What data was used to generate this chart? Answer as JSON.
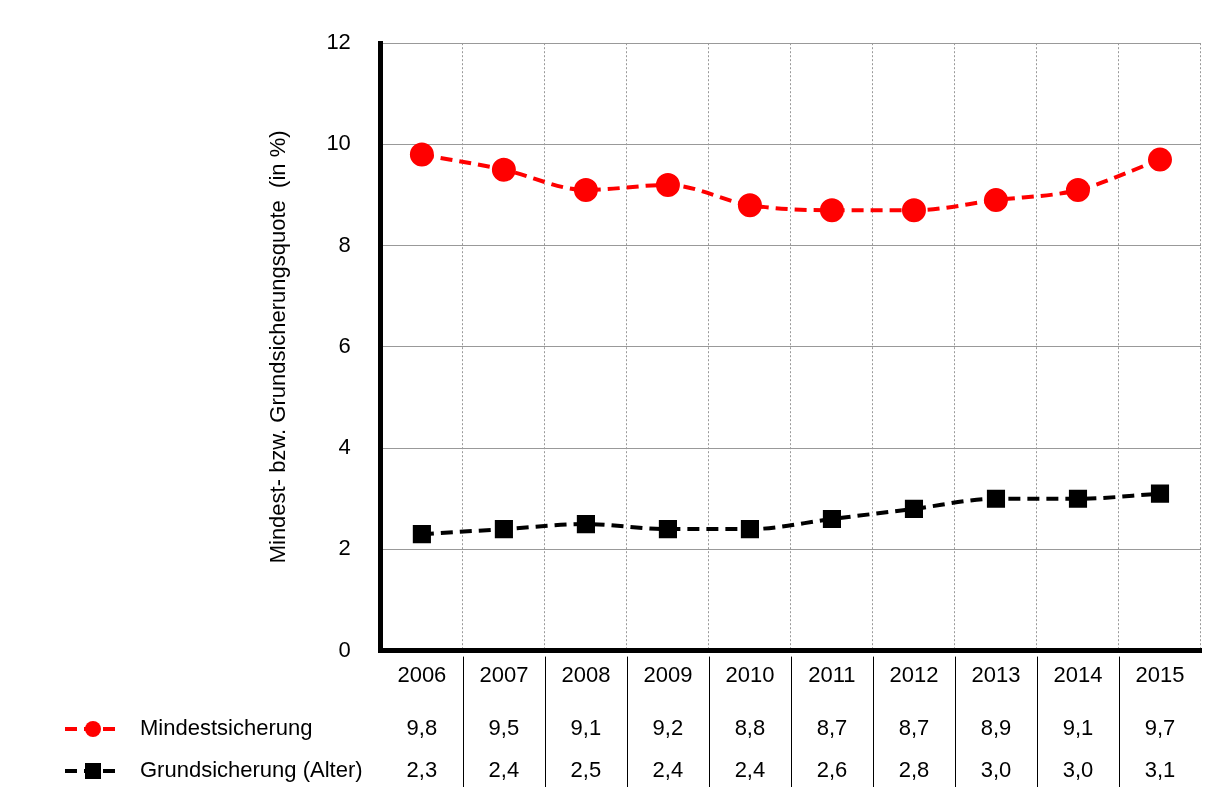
{
  "chart_data": {
    "type": "line",
    "ylabel": "Mindest- bzw. Grundsicherungsquote  (in %)",
    "categories": [
      "2006",
      "2007",
      "2008",
      "2009",
      "2010",
      "2011",
      "2012",
      "2013",
      "2014",
      "2015"
    ],
    "series": [
      {
        "name": "Mindestsicherung",
        "color": "#ff0000",
        "marker": "circle",
        "values": [
          9.8,
          9.5,
          9.1,
          9.2,
          8.8,
          8.7,
          8.7,
          8.9,
          9.1,
          9.7
        ],
        "value_labels": [
          "9,8",
          "9,5",
          "9,1",
          "9,2",
          "8,8",
          "8,7",
          "8,7",
          "8,9",
          "9,1",
          "9,7"
        ]
      },
      {
        "name": "Grundsicherung (Alter)",
        "color": "#000000",
        "marker": "square",
        "values": [
          2.3,
          2.4,
          2.5,
          2.4,
          2.4,
          2.6,
          2.8,
          3.0,
          3.0,
          3.1
        ],
        "value_labels": [
          "2,3",
          "2,4",
          "2,5",
          "2,4",
          "2,4",
          "2,6",
          "2,8",
          "3,0",
          "3,0",
          "3,1"
        ]
      }
    ],
    "ylim": [
      0,
      12
    ],
    "yticks": [
      0,
      2,
      4,
      6,
      8,
      10,
      12
    ],
    "grid": true,
    "legend": "bottom",
    "line_style": "dashed"
  }
}
